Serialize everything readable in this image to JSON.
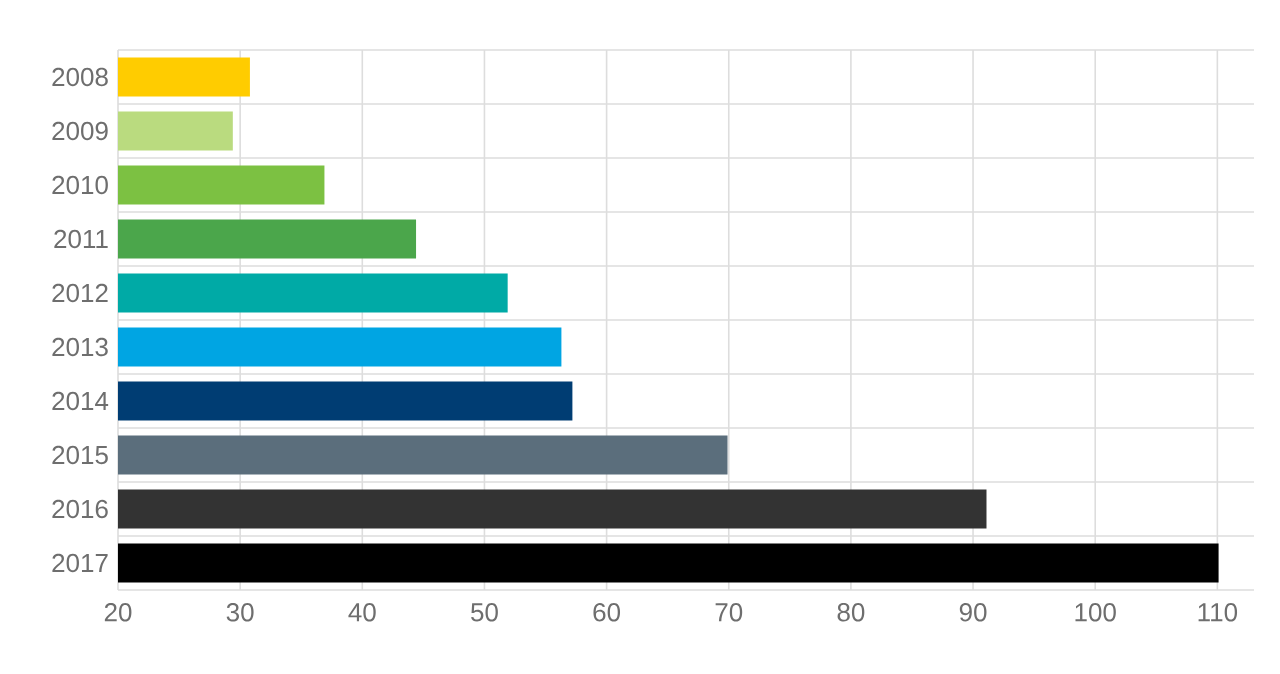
{
  "chart_data": {
    "type": "bar",
    "orientation": "horizontal",
    "categories": [
      "2008",
      "2009",
      "2010",
      "2011",
      "2012",
      "2013",
      "2014",
      "2015",
      "2016",
      "2017"
    ],
    "values": [
      30.8,
      29.4,
      36.9,
      44.4,
      51.9,
      56.3,
      57.2,
      69.9,
      91.1,
      110.1
    ],
    "colors": [
      "#ffcc00",
      "#badb7f",
      "#7cc142",
      "#4ba64b",
      "#00aaa6",
      "#00a5e3",
      "#003d73",
      "#5b6e7c",
      "#333333",
      "#000000"
    ],
    "xlim": [
      20,
      113
    ],
    "xticks": [
      20,
      30,
      40,
      50,
      60,
      70,
      80,
      90,
      100,
      110
    ],
    "grid": true
  }
}
